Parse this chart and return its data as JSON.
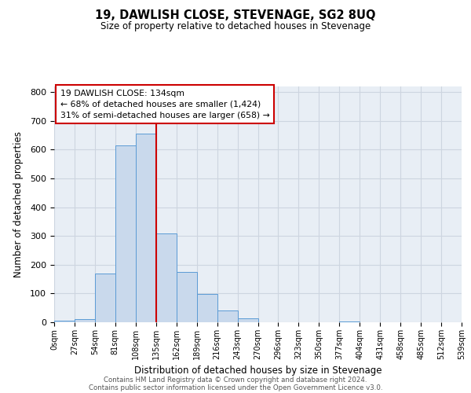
{
  "title": "19, DAWLISH CLOSE, STEVENAGE, SG2 8UQ",
  "subtitle": "Size of property relative to detached houses in Stevenage",
  "xlabel": "Distribution of detached houses by size in Stevenage",
  "ylabel": "Number of detached properties",
  "bin_edges": [
    0,
    27,
    54,
    81,
    108,
    135,
    162,
    189,
    216,
    243,
    270,
    297,
    324,
    351,
    378,
    405,
    432,
    459,
    486,
    513,
    540
  ],
  "bin_labels": [
    "0sqm",
    "27sqm",
    "54sqm",
    "81sqm",
    "108sqm",
    "135sqm",
    "162sqm",
    "189sqm",
    "216sqm",
    "243sqm",
    "270sqm",
    "296sqm",
    "323sqm",
    "350sqm",
    "377sqm",
    "404sqm",
    "431sqm",
    "458sqm",
    "485sqm",
    "512sqm",
    "539sqm"
  ],
  "counts": [
    5,
    12,
    170,
    615,
    655,
    308,
    175,
    98,
    40,
    13,
    0,
    0,
    0,
    0,
    3,
    0,
    0,
    0,
    0,
    0
  ],
  "bar_color": "#c9d9ec",
  "bar_edge_color": "#5b9bd5",
  "property_line_x": 135,
  "property_line_color": "#cc0000",
  "annotation_text": "19 DAWLISH CLOSE: 134sqm\n← 68% of detached houses are smaller (1,424)\n31% of semi-detached houses are larger (658) →",
  "annotation_box_color": "#cc0000",
  "annotation_text_color": "black",
  "ylim": [
    0,
    820
  ],
  "xlim": [
    0,
    540
  ],
  "yticks": [
    0,
    100,
    200,
    300,
    400,
    500,
    600,
    700,
    800
  ],
  "grid_color": "#cdd5e0",
  "background_color": "#e8eef5",
  "footer_line1": "Contains HM Land Registry data © Crown copyright and database right 2024.",
  "footer_line2": "Contains public sector information licensed under the Open Government Licence v3.0."
}
